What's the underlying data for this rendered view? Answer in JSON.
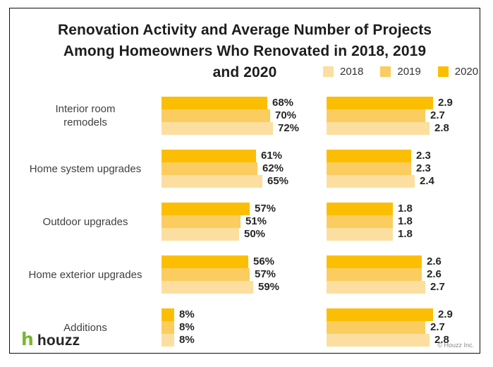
{
  "header": {
    "title_lines": [
      "Renovation Activity and Average Number of Projects",
      "Among Homeowners Who Renovated in 2018, 2019",
      "and 2020"
    ]
  },
  "legend": {
    "items": [
      {
        "label": "2018",
        "color": "#FCDFA0"
      },
      {
        "label": "2019",
        "color": "#FBCD60"
      },
      {
        "label": "2020",
        "color": "#FCBE02"
      }
    ]
  },
  "left_column": {
    "row_labels": [
      "Interior room\nremodels",
      "Home system upgrades",
      "Outdoor upgrades",
      "Home exterior upgrades",
      "Additions"
    ]
  },
  "footer": {
    "logo_text": "houzz",
    "logo_color": "#76B82D",
    "copyright": "© Houzz Inc."
  },
  "chart_data": {
    "type": "bar",
    "orientation": "horizontal",
    "title": "Renovation Activity and Average Number of Projects Among Homeowners Who Renovated in 2018, 2019 and 2020",
    "legend_entries": [
      "2018",
      "2019",
      "2020"
    ],
    "legend_position": "top-right",
    "grid": false,
    "categories": [
      "Interior room remodels",
      "Home system upgrades",
      "Outdoor upgrades",
      "Home exterior upgrades",
      "Additions"
    ],
    "series_display_order_top_to_bottom": [
      "2020",
      "2019",
      "2018"
    ],
    "panels": [
      {
        "id": "renovation_activity_share",
        "value_suffix": "%",
        "xlim": [
          0,
          80
        ],
        "series": [
          {
            "name": "2018",
            "color": "#FCDFA0",
            "values": [
              72,
              65,
              50,
              59,
              8
            ]
          },
          {
            "name": "2019",
            "color": "#FBCD60",
            "values": [
              70,
              62,
              51,
              57,
              8
            ]
          },
          {
            "name": "2020",
            "color": "#FCBE02",
            "values": [
              68,
              61,
              57,
              56,
              8
            ]
          }
        ]
      },
      {
        "id": "average_number_of_projects",
        "value_decimals": 1,
        "xlim": [
          0,
          3.2
        ],
        "series": [
          {
            "name": "2018",
            "color": "#FCDFA0",
            "values": [
              2.8,
              2.4,
              1.8,
              2.7,
              2.8
            ]
          },
          {
            "name": "2019",
            "color": "#FBCD60",
            "values": [
              2.7,
              2.3,
              1.8,
              2.6,
              2.7
            ]
          },
          {
            "name": "2020",
            "color": "#FCBE02",
            "values": [
              2.9,
              2.3,
              1.8,
              2.6,
              2.9
            ]
          }
        ]
      }
    ]
  }
}
